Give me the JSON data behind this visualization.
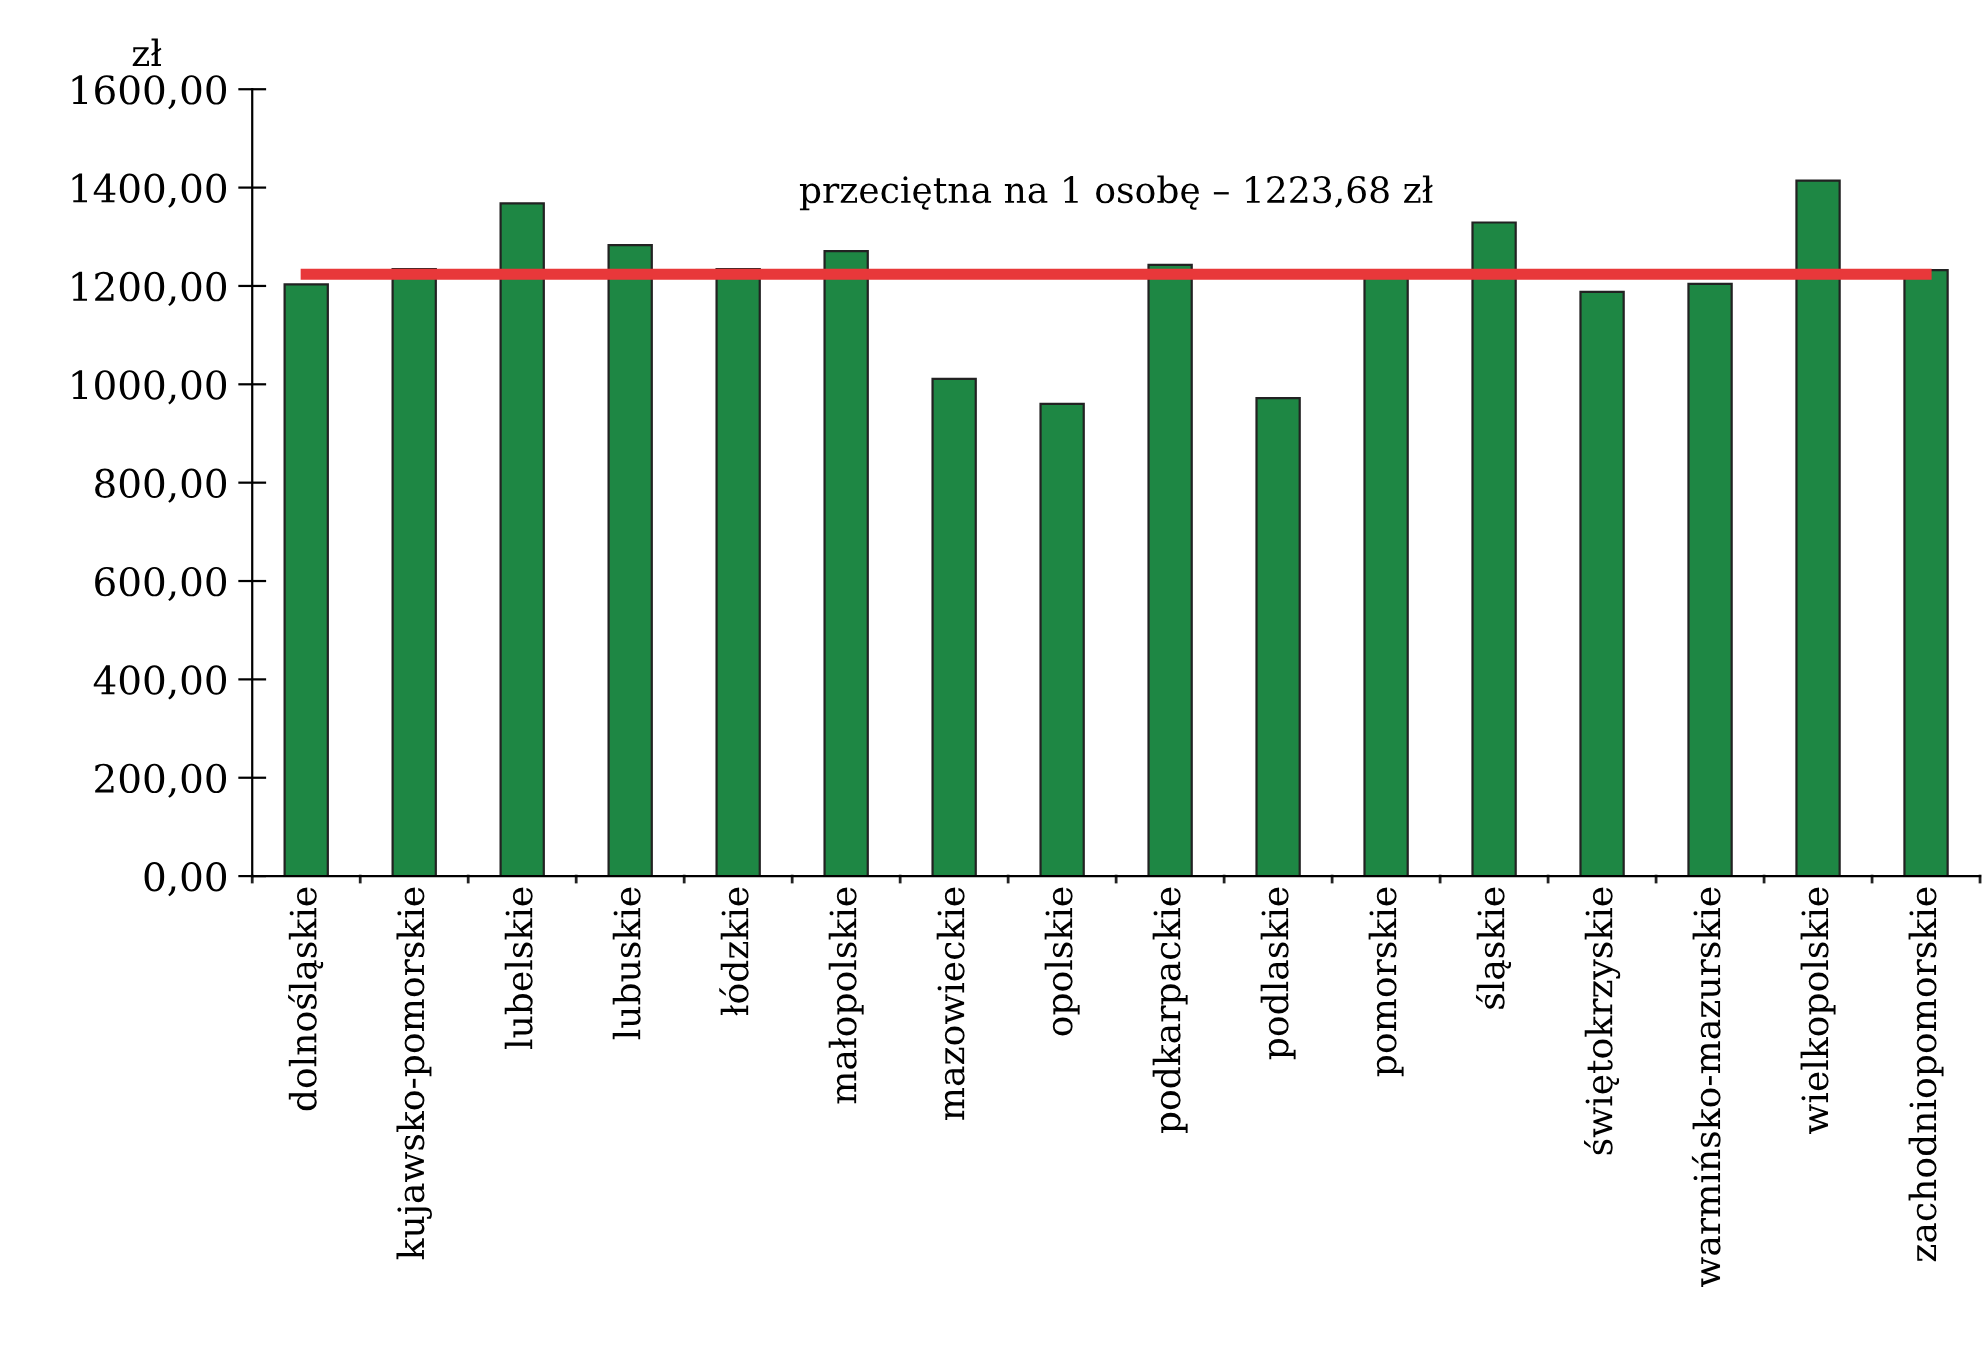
{
  "chart_data": {
    "type": "bar",
    "ylabel": "zł",
    "categories": [
      "dolnośląskie",
      "kujawsko-pomorskie",
      "lubelskie",
      "lubuskie",
      "łódzkie",
      "małopolskie",
      "mazowieckie",
      "opolskie",
      "podkarpackie",
      "podlaskie",
      "pomorskie",
      "śląskie",
      "świętokrzyskie",
      "warmińsko-mazurskie",
      "wielkopolskie",
      "zachodniopomorskie"
    ],
    "values": [
      1203,
      1234,
      1368,
      1283,
      1234,
      1271,
      1011,
      960,
      1243,
      972,
      1220,
      1329,
      1188,
      1204,
      1414,
      1232
    ],
    "color": "#1e8744",
    "ylim": [
      0,
      1600
    ],
    "yticks": [
      {
        "value": 0,
        "label": "0,00"
      },
      {
        "value": 200,
        "label": "200,00"
      },
      {
        "value": 400,
        "label": "400,00"
      },
      {
        "value": 600,
        "label": "600,00"
      },
      {
        "value": 800,
        "label": "800,00"
      },
      {
        "value": 1000,
        "label": "1000,00"
      },
      {
        "value": 1200,
        "label": "1200,00"
      },
      {
        "value": 1400,
        "label": "1400,00"
      },
      {
        "value": 1600,
        "label": "1600,00"
      }
    ],
    "ref_lines": [
      {
        "axis": "y",
        "value": 1223.68,
        "label": "przeciętna na 1 osobę – 1223,68 zł",
        "color": "#e8383a"
      }
    ],
    "grid": false,
    "legend": false
  }
}
